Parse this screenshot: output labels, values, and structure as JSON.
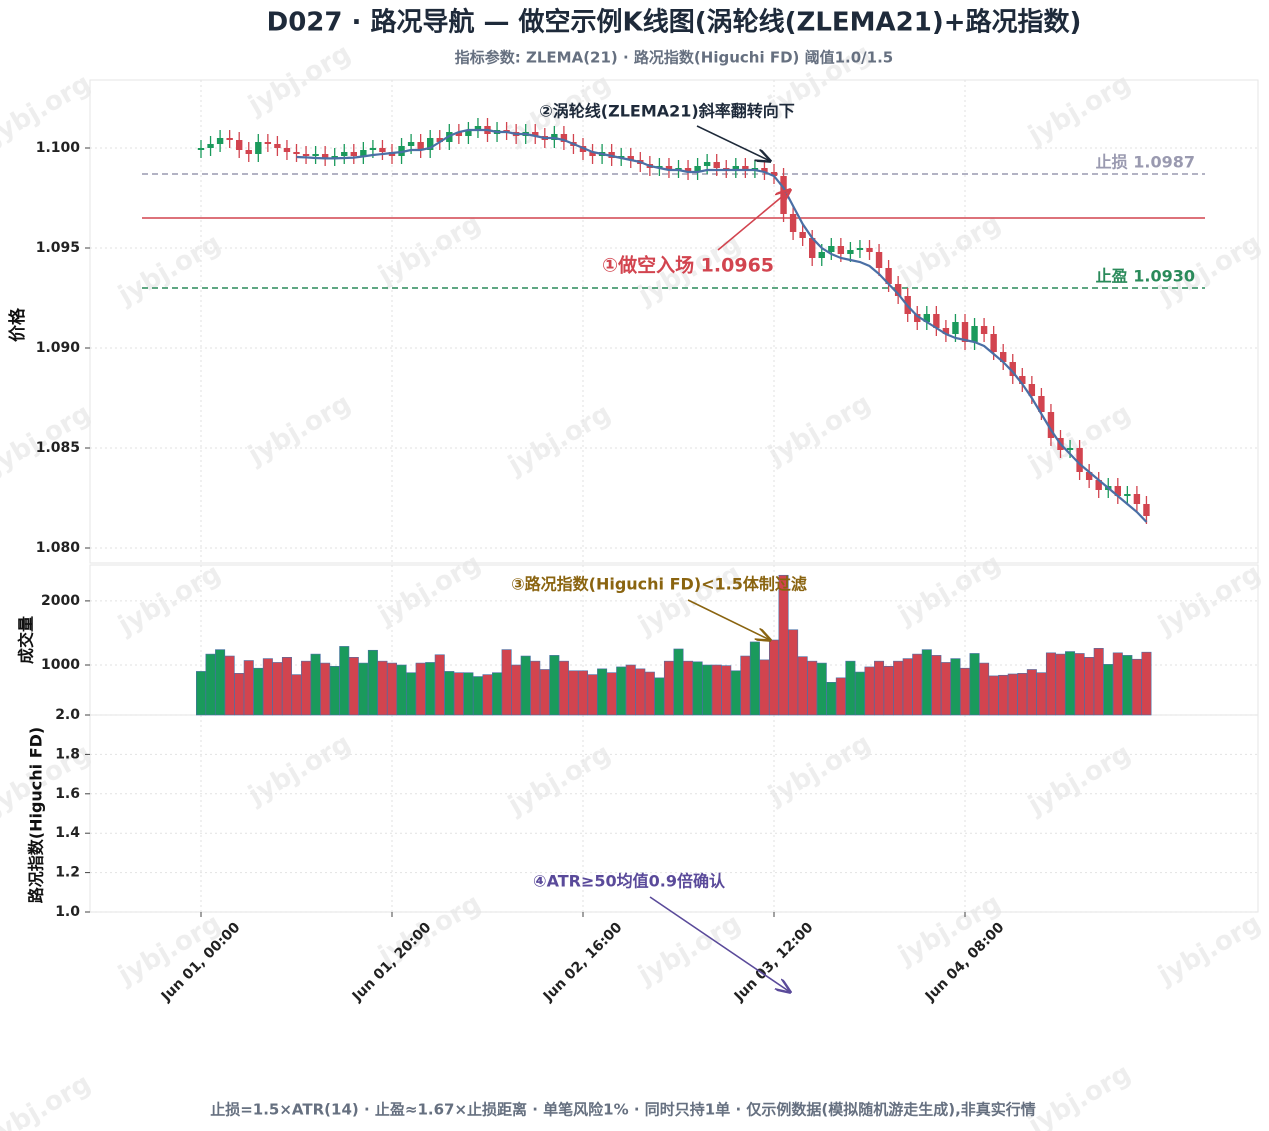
{
  "chart_data": {
    "type": "candlestick",
    "title": "D027 · 路况导航 — 做空示例K线图(涡轮线(ZLEMA21)+路况指数)",
    "subtitle": "指标参数: ZLEMA(21) · 路况指数(Higuchi FD) 阈值1.0/1.5",
    "footer": "止损=1.5×ATR(14) · 止盈≈1.67×止损距离 · 单笔风险1% · 同时只持1单 · 仅示例数据(模拟随机游走生成),非真实行情",
    "watermark": "jybj.org",
    "ylabel": "价格",
    "volume_label": "成交量",
    "fd_label": "路况指数(Higuchi FD)",
    "up_color": "#1a9a5c",
    "down_color": "#d2444f",
    "line_color": "#4a6fa5",
    "grid": true,
    "x": [
      "Jun 01, 00:00",
      "Jun 01, 01:00",
      "Jun 01, 02:00",
      "Jun 01, 03:00",
      "Jun 01, 04:00",
      "Jun 01, 05:00",
      "Jun 01, 06:00",
      "Jun 01, 07:00",
      "Jun 01, 08:00",
      "Jun 01, 09:00",
      "Jun 01, 10:00",
      "Jun 01, 11:00",
      "Jun 01, 12:00",
      "Jun 01, 13:00",
      "Jun 01, 14:00",
      "Jun 01, 15:00",
      "Jun 01, 16:00",
      "Jun 01, 17:00",
      "Jun 01, 18:00",
      "Jun 01, 19:00",
      "Jun 01, 20:00",
      "Jun 01, 21:00",
      "Jun 01, 22:00",
      "Jun 01, 23:00",
      "Jun 02, 00:00",
      "Jun 02, 01:00",
      "Jun 02, 02:00",
      "Jun 02, 03:00",
      "Jun 02, 04:00",
      "Jun 02, 05:00",
      "Jun 02, 06:00",
      "Jun 02, 07:00",
      "Jun 02, 08:00",
      "Jun 02, 09:00",
      "Jun 02, 10:00",
      "Jun 02, 11:00",
      "Jun 02, 12:00",
      "Jun 02, 13:00",
      "Jun 02, 14:00",
      "Jun 02, 15:00",
      "Jun 02, 16:00",
      "Jun 02, 17:00",
      "Jun 02, 18:00",
      "Jun 02, 19:00",
      "Jun 02, 20:00",
      "Jun 02, 21:00",
      "Jun 02, 22:00",
      "Jun 02, 23:00",
      "Jun 03, 00:00",
      "Jun 03, 01:00",
      "Jun 03, 02:00",
      "Jun 03, 03:00",
      "Jun 03, 04:00",
      "Jun 03, 05:00",
      "Jun 03, 06:00",
      "Jun 03, 07:00",
      "Jun 03, 08:00",
      "Jun 03, 09:00",
      "Jun 03, 10:00",
      "Jun 03, 11:00",
      "Jun 03, 12:00",
      "Jun 03, 13:00",
      "Jun 03, 14:00",
      "Jun 03, 15:00",
      "Jun 03, 16:00",
      "Jun 03, 17:00",
      "Jun 03, 18:00",
      "Jun 03, 19:00",
      "Jun 03, 20:00",
      "Jun 03, 21:00",
      "Jun 03, 22:00",
      "Jun 03, 23:00",
      "Jun 04, 00:00",
      "Jun 04, 01:00",
      "Jun 04, 02:00",
      "Jun 04, 03:00",
      "Jun 04, 04:00",
      "Jun 04, 05:00",
      "Jun 04, 06:00",
      "Jun 04, 07:00",
      "Jun 04, 08:00",
      "Jun 04, 09:00",
      "Jun 04, 10:00",
      "Jun 04, 11:00",
      "Jun 04, 12:00",
      "Jun 04, 13:00",
      "Jun 04, 14:00",
      "Jun 04, 15:00",
      "Jun 04, 16:00",
      "Jun 04, 17:00",
      "Jun 04, 18:00",
      "Jun 04, 19:00",
      "Jun 04, 20:00",
      "Jun 04, 21:00",
      "Jun 04, 22:00",
      "Jun 04, 23:00",
      "Jun 05, 00:00",
      "Jun 05, 01:00",
      "Jun 05, 02:00",
      "Jun 05, 03:00"
    ],
    "open": [
      1.0999,
      1.1,
      1.1002,
      1.1005,
      1.1004,
      1.0999,
      1.0997,
      1.1003,
      1.1002,
      1.1,
      1.0998,
      1.0997,
      1.0996,
      1.0997,
      1.0995,
      1.0996,
      1.0998,
      1.0996,
      1.0999,
      1.1,
      1.0998,
      1.0996,
      1.1001,
      1.1003,
      1.0999,
      1.1005,
      1.1003,
      1.1008,
      1.1006,
      1.1009,
      1.1011,
      1.1007,
      1.1009,
      1.1008,
      1.1006,
      1.1008,
      1.1006,
      1.1004,
      1.1007,
      1.1003,
      1.1001,
      1.0998,
      1.0996,
      1.0998,
      1.0995,
      1.0996,
      1.0994,
      1.0992,
      1.099,
      1.0991,
      1.0989,
      1.099,
      1.0988,
      1.0991,
      1.0993,
      1.099,
      1.0989,
      1.0991,
      1.0989,
      1.099,
      1.0988,
      1.0986,
      1.0967,
      1.0958,
      1.0955,
      1.0945,
      1.0948,
      1.0951,
      1.0947,
      1.0949,
      1.095,
      1.0948,
      1.094,
      1.0932,
      1.0926,
      1.0917,
      1.0913,
      1.0917,
      1.091,
      1.0907,
      1.0913,
      1.0903,
      1.0911,
      1.0907,
      1.0898,
      1.0893,
      1.0886,
      1.0882,
      1.0876,
      1.0868,
      1.0855,
      1.0849,
      1.085,
      1.0838,
      1.0834,
      1.0829,
      1.0831,
      1.0826,
      1.0827,
      1.0822
    ],
    "high": [
      1.1004,
      1.1006,
      1.1009,
      1.1009,
      1.1008,
      1.1003,
      1.1007,
      1.1007,
      1.1006,
      1.1004,
      1.1002,
      1.1001,
      1.1001,
      1.1001,
      1.1,
      1.1002,
      1.1002,
      1.1003,
      1.1004,
      1.1004,
      1.1002,
      1.1005,
      1.1007,
      1.1007,
      1.1009,
      1.1009,
      1.1012,
      1.1012,
      1.1013,
      1.1015,
      1.1015,
      1.1013,
      1.1013,
      1.1012,
      1.1012,
      1.1012,
      1.101,
      1.1011,
      1.1011,
      1.1007,
      1.1005,
      1.1002,
      1.1002,
      1.1002,
      1.1,
      1.1,
      1.0998,
      1.0996,
      1.0995,
      1.0995,
      1.0994,
      1.0994,
      1.0995,
      1.0997,
      1.0997,
      1.0994,
      1.0995,
      1.0995,
      1.0994,
      1.0994,
      1.0992,
      1.099,
      1.0971,
      1.0962,
      1.0959,
      1.0952,
      1.0955,
      1.0955,
      1.0953,
      1.0954,
      1.0954,
      1.0952,
      1.0944,
      1.0936,
      1.093,
      1.0921,
      1.0921,
      1.0921,
      1.0914,
      1.0917,
      1.0917,
      1.0915,
      1.0915,
      1.0911,
      1.0902,
      1.0897,
      1.089,
      1.0886,
      1.088,
      1.0872,
      1.0859,
      1.0854,
      1.0854,
      1.0842,
      1.0838,
      1.0835,
      1.0835,
      1.0831,
      1.0831,
      1.0826
    ],
    "low": [
      1.0995,
      1.0996,
      1.0998,
      1.1,
      1.0995,
      1.0993,
      1.0993,
      1.0998,
      1.0996,
      1.0994,
      1.0993,
      1.0992,
      1.0992,
      1.0991,
      1.0991,
      1.0992,
      1.0992,
      1.0992,
      1.0995,
      1.0994,
      1.0992,
      1.0992,
      1.0997,
      1.0995,
      1.0995,
      1.0999,
      1.0999,
      1.1002,
      1.1002,
      1.1005,
      1.1003,
      1.1003,
      1.1004,
      1.1002,
      1.1002,
      1.1002,
      1.1,
      1.1,
      1.0999,
      1.0997,
      1.0994,
      1.0992,
      1.0992,
      1.0991,
      1.0991,
      1.099,
      1.0988,
      1.0986,
      1.0986,
      1.0985,
      1.0985,
      1.0984,
      1.0984,
      1.0987,
      1.0986,
      1.0985,
      1.0985,
      1.0985,
      1.0985,
      1.0984,
      1.0982,
      1.0963,
      1.0954,
      1.0951,
      1.0941,
      1.0941,
      1.0944,
      1.0943,
      1.0943,
      1.0945,
      1.0944,
      1.0936,
      1.0928,
      1.0922,
      1.0913,
      1.0909,
      1.0909,
      1.0906,
      1.0903,
      1.0903,
      1.0899,
      1.0899,
      1.0903,
      1.0894,
      1.0889,
      1.0882,
      1.0878,
      1.0872,
      1.0864,
      1.0851,
      1.0845,
      1.0845,
      1.0834,
      1.083,
      1.0825,
      1.0825,
      1.0822,
      1.0822,
      1.0818,
      1.0812
    ],
    "close": [
      1.1,
      1.1002,
      1.1005,
      1.1004,
      1.0999,
      1.0997,
      1.1003,
      1.1002,
      1.1,
      1.0998,
      1.0997,
      1.0996,
      1.0997,
      1.0995,
      1.0996,
      1.0998,
      1.0996,
      1.0999,
      1.1,
      1.0998,
      1.0996,
      1.1001,
      1.1003,
      1.0999,
      1.1005,
      1.1003,
      1.1008,
      1.1006,
      1.1009,
      1.1011,
      1.1007,
      1.1009,
      1.1008,
      1.1006,
      1.1008,
      1.1006,
      1.1004,
      1.1007,
      1.1003,
      1.1001,
      1.0998,
      1.0996,
      1.0998,
      1.0995,
      1.0996,
      1.0994,
      1.0992,
      1.099,
      1.0991,
      1.0989,
      1.099,
      1.0988,
      1.0991,
      1.0993,
      1.099,
      1.0989,
      1.0991,
      1.0989,
      1.099,
      1.0988,
      1.0986,
      1.0967,
      1.0958,
      1.0955,
      1.0945,
      1.0948,
      1.0951,
      1.0947,
      1.0949,
      1.095,
      1.0948,
      1.094,
      1.0932,
      1.0926,
      1.0917,
      1.0913,
      1.0917,
      1.091,
      1.0907,
      1.0913,
      1.0903,
      1.0911,
      1.0907,
      1.0898,
      1.0893,
      1.0886,
      1.0882,
      1.0876,
      1.0868,
      1.0855,
      1.0849,
      1.085,
      1.0838,
      1.0834,
      1.0829,
      1.0831,
      1.0826,
      1.0827,
      1.0822,
      1.0816
    ],
    "zlema": [
      null,
      null,
      null,
      null,
      null,
      null,
      null,
      null,
      null,
      null,
      1.09955,
      1.09953,
      1.0995,
      1.09948,
      1.09948,
      1.0995,
      1.09952,
      1.09958,
      1.09965,
      1.0997,
      1.09975,
      1.0998,
      1.0999,
      1.0999,
      1.1,
      1.1003,
      1.1006,
      1.1008,
      1.1009,
      1.1009,
      1.1009,
      1.1008,
      1.1008,
      1.1007,
      1.1007,
      1.1006,
      1.1005,
      1.1005,
      1.1004,
      1.1002,
      1.1,
      1.0998,
      1.0997,
      1.0996,
      1.0995,
      1.0994,
      1.0993,
      1.0991,
      1.099,
      1.0989,
      1.0989,
      1.0988,
      1.0988,
      1.0989,
      1.0989,
      1.0989,
      1.0989,
      1.0989,
      1.0989,
      1.0988,
      1.0986,
      1.098,
      1.0971,
      1.0962,
      1.0955,
      1.095,
      1.0947,
      1.0945,
      1.0944,
      1.0943,
      1.0941,
      1.0937,
      1.0932,
      1.0927,
      1.0921,
      1.0916,
      1.0913,
      1.091,
      1.0907,
      1.0905,
      1.0904,
      1.0903,
      1.0901,
      1.0897,
      1.0893,
      1.0888,
      1.0882,
      1.0875,
      1.0867,
      1.0859,
      1.0852,
      1.0847,
      1.0842,
      1.0838,
      1.0834,
      1.083,
      1.0826,
      1.0822,
      1.0818,
      1.0813
    ],
    "volume": [
      900,
      1170,
      1240,
      1140,
      870,
      1070,
      950,
      1100,
      1040,
      1120,
      850,
      1060,
      1170,
      1030,
      980,
      1290,
      1120,
      1030,
      1230,
      1060,
      1030,
      1000,
      880,
      1030,
      1040,
      1160,
      900,
      880,
      880,
      820,
      850,
      880,
      1240,
      1000,
      1140,
      1060,
      930,
      1150,
      1060,
      910,
      910,
      850,
      940,
      880,
      970,
      1000,
      940,
      890,
      800,
      1060,
      1250,
      1060,
      1050,
      1000,
      1000,
      990,
      910,
      1140,
      1360,
      1080,
      1390,
      2400,
      1550,
      1130,
      1060,
      1030,
      730,
      800,
      1060,
      890,
      970,
      1060,
      980,
      1060,
      1100,
      1170,
      1240,
      1150,
      1040,
      1100,
      950,
      1180,
      1030,
      830,
      840,
      860,
      870,
      930,
      880,
      1190,
      1170,
      1210,
      1180,
      1120,
      1260,
      1010,
      1190,
      1150,
      1090,
      1200
    ],
    "xticks": [
      "Jun 01, 00:00",
      "Jun 01, 20:00",
      "Jun 02, 16:00",
      "Jun 03, 12:00",
      "Jun 04, 08:00"
    ],
    "ylim": [
      1.07925,
      1.1034
    ],
    "yticks": [
      {
        "value": 1.08,
        "label": "1.080"
      },
      {
        "value": 1.085,
        "label": "1.085"
      },
      {
        "value": 1.09,
        "label": "1.090"
      },
      {
        "value": 1.095,
        "label": "1.095"
      },
      {
        "value": 1.1,
        "label": "1.100"
      }
    ],
    "volume_ylim": [
      220,
      2560
    ],
    "volume_yticks": [
      1000,
      2000
    ],
    "fd_ylim": [
      1,
      2
    ],
    "fd_yticks": [
      {
        "value": 1,
        "label": "1.0"
      },
      1.2,
      1.4,
      1.6,
      1.8,
      {
        "value": 2,
        "label": "2.0"
      }
    ],
    "levels": [
      {
        "name": "止损 1.0987",
        "value": 1.0987,
        "color": "#9a9ab0",
        "dashed": true
      },
      {
        "value": 1.0965,
        "color": "#d2444f",
        "dashed": false
      },
      {
        "name": "止盈 1.0930",
        "value": 1.093,
        "color": "#2a8a5a",
        "dashed": true
      }
    ],
    "annotations": [
      {
        "text": "②涡轮线(ZLEMA21)斜率翻转向下",
        "color": "#1e2a3a"
      },
      {
        "text": "①做空入场 1.0965",
        "color": "#d2444f"
      },
      {
        "text": "③路况指数(Higuchi FD)<1.5体制过滤",
        "color": "#8a6410"
      },
      {
        "text": "④ATR≥50均值0.9倍确认",
        "color": "#5a4a9a"
      }
    ]
  }
}
